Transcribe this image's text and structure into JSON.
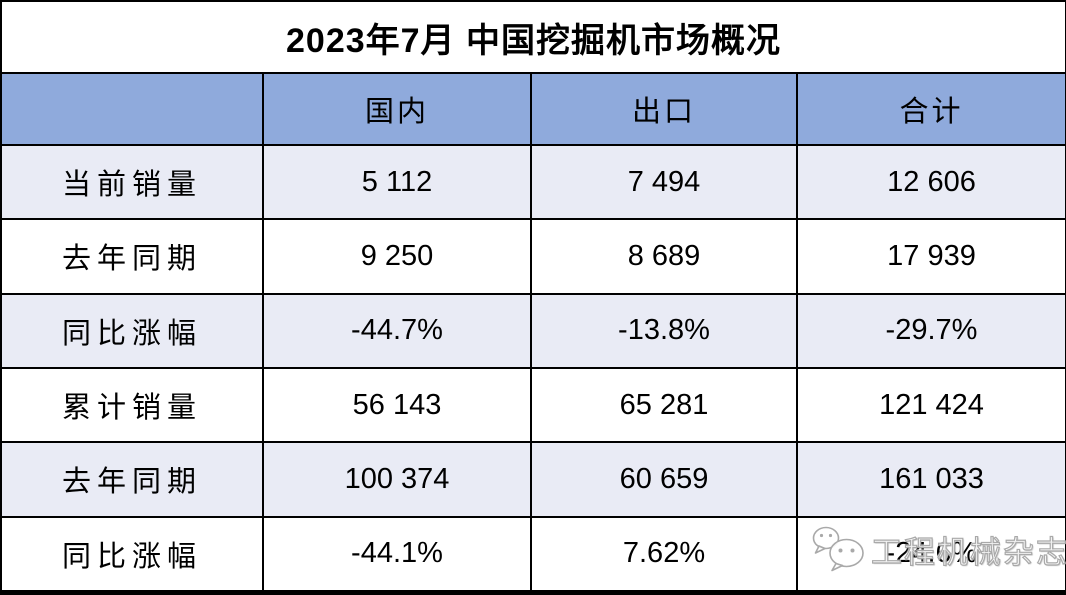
{
  "title": "2023年7月 中国挖掘机市场概况",
  "chart_data": {
    "type": "table",
    "title": "2023年7月 中国挖掘机市场概况",
    "columns": [
      "",
      "国内",
      "出口",
      "合计"
    ],
    "rows": [
      {
        "label": "当前销量",
        "values": [
          "5 112",
          "7 494",
          "12 606"
        ]
      },
      {
        "label": "去年同期",
        "values": [
          "9 250",
          "8 689",
          "17 939"
        ]
      },
      {
        "label": "同比涨幅",
        "values": [
          "-44.7%",
          "-13.8%",
          "-29.7%"
        ]
      },
      {
        "label": "累计销量",
        "values": [
          "56 143",
          "65 281",
          "121 424"
        ]
      },
      {
        "label": "去年同期",
        "values": [
          "100 374",
          "60 659",
          "161 033"
        ]
      },
      {
        "label": "同比涨幅",
        "values": [
          "-44.1%",
          "7.62%",
          "-24.6%"
        ]
      }
    ]
  },
  "watermark": {
    "text": "工程机械杂志",
    "icon": "wechat-chat-bubbles-icon"
  },
  "colors": {
    "header_bg": "#8FAADC",
    "alt_row_bg": "#E9EBF5",
    "border": "#000000",
    "watermark_gray": "#A9A9A9"
  }
}
